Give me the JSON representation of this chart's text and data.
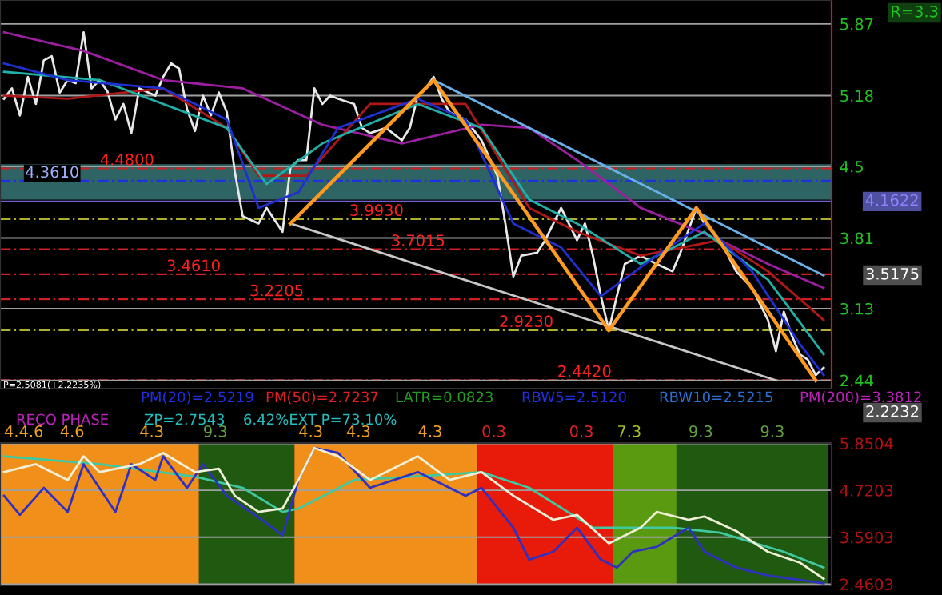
{
  "chart_data": [
    {
      "type": "line",
      "categories": [
        null,
        null,
        null,
        null,
        null,
        null,
        null,
        null,
        null,
        null,
        null,
        null,
        null,
        null,
        null,
        null,
        null,
        null,
        null,
        null,
        null,
        null,
        null,
        null,
        null,
        null,
        null,
        null,
        null,
        null,
        null,
        null,
        null,
        null,
        null,
        null,
        null,
        null,
        null,
        null,
        null,
        null,
        null,
        null,
        null,
        null,
        null,
        null,
        null,
        null,
        null,
        null,
        null,
        null,
        null,
        null,
        null,
        null,
        null,
        null,
        null,
        null,
        null,
        null,
        null,
        null,
        null,
        null,
        null,
        null,
        null,
        null,
        null,
        null,
        null,
        null,
        null,
        null,
        null,
        null,
        null,
        null,
        null,
        null,
        null,
        null,
        null,
        null,
        null,
        null,
        null,
        null,
        null,
        null,
        null,
        null,
        null,
        null,
        null,
        null,
        null,
        null,
        null,
        null
      ],
      "ylim": [
        2.36,
        6.1
      ],
      "yticks": [
        2.44,
        3.13,
        3.81,
        4.5,
        5.18,
        5.87
      ],
      "tick_labels": "y",
      "grid": "y",
      "legend": false,
      "marker": "none",
      "line_style": "solid",
      "series": [
        {
          "color": "#e8e8e8",
          "values": [
            5.15,
            5.25,
            4.99,
            5.36,
            5.1,
            5.52,
            5.56,
            5.21,
            5.33,
            5.3,
            5.79,
            5.25,
            5.33,
            5.22,
            4.95,
            5.1,
            4.82,
            5.25,
            null,
            5.18,
            5.36,
            5.49,
            5.44,
            5.05,
            4.84,
            5.18,
            4.99,
            5.21,
            5.02,
            4.45,
            4.02,
            null,
            3.95,
            4.1,
            null,
            3.87,
            4.49,
            4.56,
            4.56,
            5.25,
            5.1,
            5.18,
            5.15,
            null,
            5.1,
            4.87,
            4.82,
            null,
            4.87,
            null,
            4.75,
            4.87,
            5.18,
            5.25,
            5.36,
            5.15,
            5.02,
            null,
            4.95,
            null,
            4.75,
            null,
            4.41,
            3.95,
            3.44,
            3.64,
            null,
            3.67,
            3.79,
            null,
            4.1,
            null,
            3.79,
            3.95,
            3.64,
            3.25,
            2.92,
            3.25,
            3.56,
            null,
            3.64,
            null,
            3.56,
            null,
            3.49,
            3.67,
            null,
            4.1,
            3.95,
            null,
            3.79,
            null,
            3.49,
            null,
            3.33,
            null,
            3.02,
            2.72,
            3.1,
            2.87,
            2.69,
            2.64,
            2.49,
            2.56
          ]
        },
        {
          "color": "#9b1fa0",
          "values": [
            5.79,
            null,
            null,
            null,
            null,
            null,
            null,
            null,
            null,
            null,
            5.61,
            null,
            null,
            null,
            null,
            null,
            null,
            null,
            null,
            null,
            5.33,
            null,
            null,
            null,
            null,
            null,
            null,
            null,
            null,
            null,
            5.25,
            null,
            null,
            null,
            null,
            null,
            null,
            null,
            null,
            null,
            4.9,
            null,
            null,
            null,
            null,
            null,
            null,
            null,
            null,
            null,
            4.72,
            null,
            null,
            null,
            null,
            null,
            null,
            null,
            null,
            null,
            4.9,
            null,
            null,
            null,
            null,
            null,
            4.87,
            null,
            null,
            null,
            null,
            null,
            4.56,
            null,
            null,
            null,
            null,
            null,
            null,
            null,
            4.1,
            null,
            null,
            null,
            null,
            null,
            null,
            null,
            null,
            null,
            3.79,
            null,
            null,
            null,
            null,
            null,
            3.56,
            null,
            null,
            null,
            null,
            null,
            null,
            3.33
          ]
        },
        {
          "color": "#b01818",
          "values": [
            5.18,
            null,
            null,
            null,
            null,
            null,
            null,
            null,
            5.15,
            null,
            null,
            null,
            null,
            null,
            null,
            null,
            null,
            null,
            null,
            null,
            5.25,
            null,
            null,
            null,
            null,
            null,
            null,
            null,
            4.87,
            null,
            null,
            null,
            4.41,
            null,
            null,
            null,
            null,
            null,
            4.41,
            null,
            null,
            null,
            null,
            null,
            null,
            null,
            5.1,
            null,
            null,
            null,
            null,
            null,
            null,
            null,
            null,
            null,
            null,
            null,
            5.1,
            null,
            null,
            null,
            null,
            null,
            null,
            null,
            4.1,
            null,
            null,
            null,
            null,
            null,
            3.87,
            null,
            null,
            null,
            null,
            null,
            null,
            null,
            3.64,
            null,
            null,
            null,
            null,
            null,
            null,
            null,
            null,
            null,
            3.79,
            null,
            null,
            null,
            null,
            null,
            3.49,
            null,
            null,
            null,
            null,
            null,
            null,
            3.02
          ]
        },
        {
          "color": "#20b0a8",
          "values": [
            5.41,
            null,
            null,
            null,
            null,
            null,
            null,
            null,
            null,
            null,
            null,
            null,
            5.33,
            null,
            null,
            null,
            null,
            null,
            null,
            null,
            null,
            null,
            null,
            null,
            null,
            null,
            null,
            null,
            4.87,
            null,
            null,
            null,
            null,
            4.33,
            null,
            null,
            null,
            null,
            null,
            null,
            4.72,
            null,
            null,
            null,
            null,
            null,
            null,
            null,
            null,
            null,
            null,
            null,
            5.1,
            null,
            null,
            null,
            null,
            null,
            null,
            null,
            4.87,
            null,
            null,
            null,
            null,
            null,
            4.18,
            null,
            null,
            null,
            null,
            null,
            3.95,
            null,
            null,
            null,
            null,
            null,
            null,
            null,
            3.56,
            null,
            null,
            null,
            null,
            null,
            null,
            null,
            3.87,
            null,
            null,
            null,
            null,
            null,
            null,
            null,
            3.41,
            null,
            null,
            null,
            null,
            null,
            null,
            2.69
          ]
        },
        {
          "color": "#2030d0",
          "values": [
            5.49,
            null,
            null,
            null,
            null,
            null,
            null,
            null,
            5.33,
            null,
            null,
            null,
            null,
            null,
            null,
            null,
            null,
            null,
            null,
            null,
            5.25,
            null,
            null,
            null,
            null,
            null,
            null,
            null,
            4.95,
            null,
            null,
            null,
            4.1,
            null,
            null,
            null,
            null,
            4.25,
            null,
            null,
            null,
            null,
            4.87,
            null,
            null,
            null,
            null,
            null,
            null,
            null,
            null,
            null,
            5.15,
            null,
            null,
            null,
            null,
            null,
            4.95,
            null,
            null,
            null,
            null,
            null,
            3.95,
            null,
            null,
            null,
            null,
            null,
            3.72,
            null,
            null,
            null,
            null,
            3.25,
            null,
            null,
            null,
            null,
            null,
            null,
            3.64,
            null,
            null,
            null,
            null,
            null,
            3.95,
            null,
            null,
            null,
            null,
            null,
            3.49,
            null,
            null,
            null,
            null,
            null,
            2.79,
            null,
            null,
            2.49
          ]
        },
        {
          "color": "#6ab0e8",
          "values": [
            null,
            null,
            null,
            null,
            null,
            null,
            null,
            null,
            null,
            null,
            null,
            null,
            null,
            null,
            null,
            null,
            null,
            null,
            null,
            null,
            null,
            null,
            null,
            null,
            null,
            null,
            null,
            null,
            null,
            null,
            null,
            null,
            null,
            null,
            null,
            null,
            null,
            null,
            null,
            null,
            null,
            null,
            null,
            null,
            null,
            null,
            null,
            null,
            null,
            null,
            null,
            null,
            null,
            null,
            5.33,
            null,
            null,
            null,
            null,
            null,
            null,
            null,
            null,
            null,
            null,
            null,
            null,
            null,
            null,
            null,
            null,
            null,
            null,
            null,
            null,
            null,
            null,
            null,
            null,
            null,
            null,
            null,
            null,
            null,
            null,
            null,
            null,
            null,
            null,
            null,
            null,
            null,
            null,
            null,
            null,
            null,
            null,
            null,
            null,
            null,
            null,
            null,
            null,
            3.45
          ]
        },
        {
          "color": "#c8c8c8",
          "values": [
            null,
            null,
            null,
            null,
            null,
            null,
            null,
            null,
            null,
            null,
            null,
            null,
            null,
            null,
            null,
            null,
            null,
            null,
            null,
            null,
            null,
            null,
            null,
            null,
            null,
            null,
            null,
            null,
            null,
            null,
            null,
            null,
            null,
            null,
            null,
            null,
            3.95,
            null,
            null,
            null,
            null,
            null,
            null,
            null,
            null,
            null,
            null,
            null,
            null,
            null,
            null,
            null,
            null,
            null,
            null,
            null,
            null,
            null,
            null,
            null,
            null,
            null,
            null,
            null,
            null,
            null,
            null,
            null,
            null,
            null,
            null,
            null,
            null,
            null,
            null,
            null,
            null,
            null,
            null,
            null,
            null,
            null,
            null,
            null,
            null,
            null,
            null,
            null,
            null,
            null,
            null,
            null,
            null,
            null,
            null,
            null,
            null,
            2.44,
            null,
            null,
            null,
            null,
            null,
            null
          ]
        },
        {
          "color": "#ff9a20",
          "values": [
            null,
            null,
            null,
            null,
            null,
            null,
            null,
            null,
            null,
            null,
            null,
            null,
            null,
            null,
            null,
            null,
            null,
            null,
            null,
            null,
            null,
            null,
            null,
            null,
            null,
            null,
            null,
            null,
            null,
            null,
            null,
            null,
            null,
            null,
            null,
            null,
            3.95,
            null,
            null,
            null,
            null,
            null,
            null,
            null,
            null,
            null,
            null,
            null,
            null,
            null,
            null,
            null,
            null,
            null,
            5.33,
            null,
            null,
            null,
            null,
            null,
            null,
            null,
            null,
            null,
            null,
            null,
            null,
            null,
            null,
            null,
            null,
            null,
            null,
            null,
            null,
            null,
            2.92,
            null,
            null,
            null,
            null,
            null,
            null,
            null,
            null,
            null,
            null,
            4.1,
            null,
            null,
            null,
            null,
            null,
            null,
            null,
            null,
            null,
            null,
            null,
            null,
            null,
            null,
            2.44,
            null
          ]
        }
      ],
      "bands": [
        {
          "axis": "y",
          "from": 4.18,
          "to": 4.52,
          "color": "#2f6464"
        }
      ],
      "ref_lines": [
        {
          "axis": "y",
          "value": 4.361,
          "label": "4.3610",
          "color": "#2030e0",
          "line_style": "dashed"
        },
        {
          "axis": "y",
          "value": 4.48,
          "label": "4.4800",
          "color": "#d02020",
          "line_style": "dashed"
        },
        {
          "axis": "y",
          "value": 4.1622,
          "label": "4.1622",
          "color": "#7060d0",
          "line_style": "solid"
        },
        {
          "axis": "y",
          "value": 3.993,
          "label": "3.9930",
          "color": "#b0b030",
          "line_style": "dashed"
        },
        {
          "axis": "y",
          "value": 3.7015,
          "label": "3.7015",
          "color": "#d02020",
          "line_style": "dashed"
        },
        {
          "axis": "y",
          "value": 3.461,
          "label": "3.4610",
          "color": "#d02020",
          "line_style": "dashed"
        },
        {
          "axis": "y",
          "value": 3.2205,
          "label": "3.2205",
          "color": "#d02020",
          "line_style": "dashed"
        },
        {
          "axis": "y",
          "value": 2.923,
          "label": "2.9230",
          "color": "#b0b030",
          "line_style": "dashed"
        },
        {
          "axis": "y",
          "value": 2.442,
          "label": "2.4420",
          "color": "#d02020",
          "line_style": "dashed"
        }
      ],
      "annotations": [
        "R=3.3",
        "3.5175",
        "2.2232",
        "P=2.5081(+2.2235%)",
        "PM(20)=2.5219",
        "PM(50)=2.7237",
        "LATR=0.0823",
        "RBW5=2.5120",
        "RBW10=2.5215",
        "PM(200)=3.3812",
        "RECO PHASE",
        "ZP=2.7543",
        "6.42%EXT P=73.10%"
      ]
    },
    {
      "type": "line",
      "categories": [
        null,
        null,
        null,
        null,
        null,
        null,
        null,
        null,
        null,
        null,
        null,
        null,
        null,
        null,
        null,
        null,
        null,
        null,
        null,
        null,
        null,
        null,
        null,
        null,
        null,
        null,
        null,
        null,
        null,
        null,
        null,
        null,
        null,
        null,
        null,
        null,
        null,
        null,
        null,
        null,
        null,
        null,
        null,
        null,
        null,
        null,
        null,
        null,
        null,
        null,
        null,
        null,
        null,
        null,
        null,
        null,
        null,
        null,
        null,
        null,
        null,
        null,
        null,
        null,
        null,
        null,
        null,
        null,
        null,
        null,
        null,
        null,
        null,
        null,
        null,
        null,
        null,
        null,
        null,
        null,
        null,
        null,
        null,
        null,
        null,
        null,
        null,
        null,
        null,
        null,
        null,
        null,
        null,
        null,
        null,
        null,
        null,
        null,
        null,
        null,
        null,
        null,
        null,
        null
      ],
      "ylim": [
        2.43,
        5.86
      ],
      "yticks": [
        2.4603,
        3.5903,
        4.7203,
        5.8504
      ],
      "tick_labels": "y",
      "grid": "y",
      "legend": false,
      "marker": "none",
      "line_style": "solid",
      "series": [
        {
          "color": "#40c8a0",
          "values": [
            5.54,
            null,
            null,
            null,
            null,
            null,
            null,
            null,
            null,
            null,
            null,
            null,
            5.35,
            null,
            null,
            null,
            null,
            null,
            null,
            null,
            null,
            null,
            null,
            null,
            5.05,
            null,
            null,
            null,
            null,
            null,
            4.78,
            null,
            null,
            null,
            null,
            4.2,
            null,
            4.28,
            null,
            null,
            null,
            null,
            null,
            null,
            4.97,
            null,
            null,
            null,
            null,
            null,
            null,
            null,
            null,
            null,
            5.08,
            null,
            null,
            null,
            null,
            null,
            5.16,
            null,
            null,
            null,
            null,
            null,
            4.78,
            null,
            null,
            null,
            null,
            null,
            null,
            null,
            3.82,
            null,
            null,
            null,
            null,
            null,
            null,
            null,
            null,
            null,
            3.82,
            null,
            null,
            null,
            null,
            null,
            3.7,
            null,
            null,
            null,
            null,
            null,
            null,
            null,
            3.24,
            null,
            null,
            null,
            null,
            2.86
          ]
        },
        {
          "color": "#3030c0",
          "values": [
            4.59,
            null,
            4.13,
            null,
            null,
            4.78,
            null,
            null,
            4.2,
            null,
            5.35,
            null,
            null,
            null,
            4.2,
            null,
            5.35,
            null,
            null,
            4.97,
            5.54,
            null,
            null,
            4.78,
            null,
            5.35,
            null,
            null,
            4.59,
            null,
            null,
            null,
            null,
            3.93,
            null,
            3.63,
            null,
            4.97,
            null,
            5.74,
            null,
            null,
            5.62,
            null,
            null,
            null,
            4.78,
            null,
            null,
            null,
            null,
            null,
            5.16,
            null,
            null,
            null,
            null,
            null,
            4.59,
            null,
            4.78,
            null,
            null,
            null,
            3.82,
            null,
            3.05,
            null,
            null,
            3.24,
            null,
            null,
            3.82,
            null,
            null,
            3.05,
            null,
            2.86,
            null,
            3.24,
            null,
            null,
            3.36,
            null,
            null,
            null,
            3.82,
            null,
            3.24,
            null,
            null,
            null,
            2.86,
            null,
            null,
            null,
            2.67,
            null,
            null,
            null,
            null,
            null,
            null,
            2.48
          ]
        },
        {
          "color": "#f0f0d8",
          "values": [
            5.16,
            null,
            null,
            null,
            5.35,
            null,
            null,
            null,
            4.97,
            null,
            5.54,
            null,
            5.16,
            null,
            null,
            null,
            null,
            5.35,
            null,
            null,
            5.62,
            null,
            null,
            null,
            5.16,
            null,
            null,
            5.24,
            null,
            4.59,
            null,
            null,
            4.2,
            null,
            null,
            4.28,
            null,
            4.97,
            null,
            5.74,
            null,
            null,
            5.54,
            null,
            null,
            null,
            4.97,
            null,
            null,
            null,
            null,
            null,
            5.54,
            null,
            null,
            null,
            4.97,
            null,
            null,
            null,
            5.16,
            null,
            null,
            null,
            4.59,
            null,
            null,
            null,
            null,
            4.01,
            null,
            null,
            4.13,
            null,
            null,
            null,
            3.44,
            null,
            null,
            null,
            3.82,
            null,
            4.2,
            null,
            null,
            null,
            4.01,
            null,
            4.09,
            null,
            null,
            null,
            3.74,
            null,
            null,
            null,
            3.24,
            null,
            null,
            null,
            2.98,
            null,
            null,
            2.59
          ]
        }
      ],
      "annotations": [
        "4.4.6",
        "4.6",
        "4.3",
        "9.3",
        "4.3",
        "4.3",
        "4.3",
        "0.3",
        "0.3",
        "7.3",
        "9.3",
        "9.3"
      ]
    }
  ]
}
